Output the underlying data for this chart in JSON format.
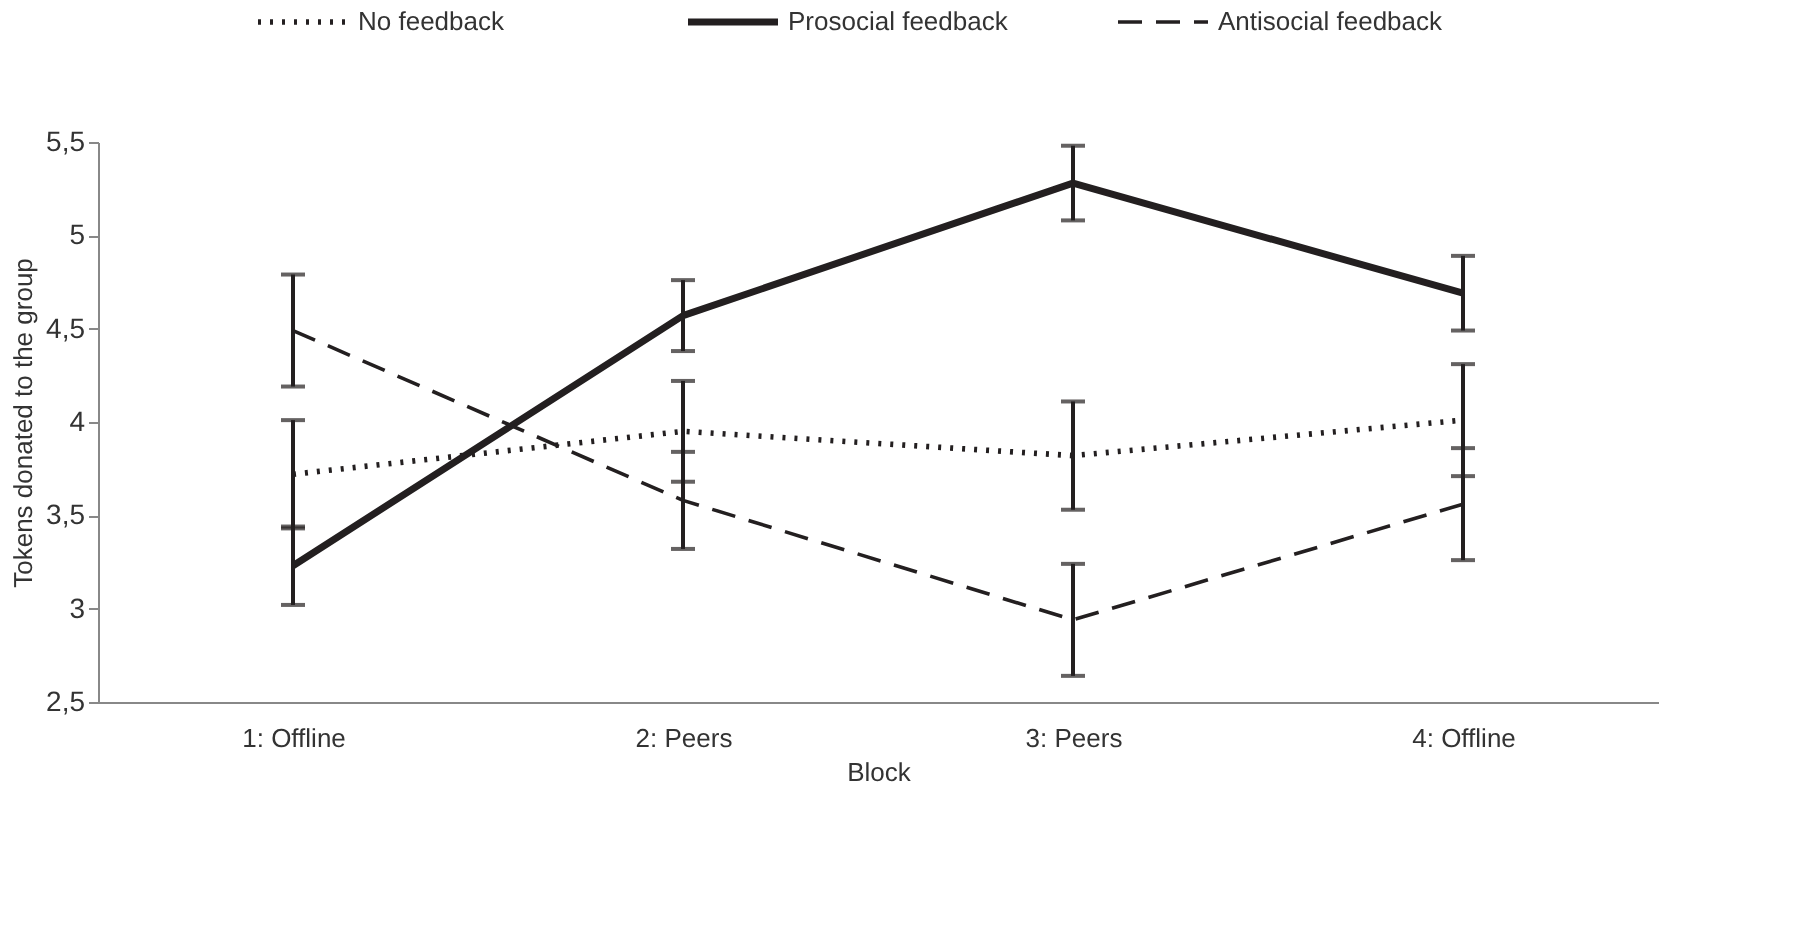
{
  "chart_data": {
    "type": "line",
    "xlabel": "Block",
    "ylabel": "Tokens donated to the group",
    "categories": [
      "1: Offline",
      "2: Peers",
      "3: Peers",
      "4: Offline"
    ],
    "series": [
      {
        "name": "No feedback",
        "color": "#231f20",
        "line_style": "dotted",
        "values": [
          3.72,
          3.95,
          3.82,
          4.01
        ],
        "errors": [
          0.29,
          0.27,
          0.29,
          0.3
        ]
      },
      {
        "name": "Prosocial feedback",
        "color": "#231f20",
        "line_style": "solid",
        "values": [
          3.23,
          4.57,
          5.28,
          4.69
        ],
        "errors": [
          0.21,
          0.19,
          0.2,
          0.2
        ]
      },
      {
        "name": "Antisocial feedback",
        "color": "#231f20",
        "line_style": "dashed",
        "values": [
          4.49,
          3.58,
          2.94,
          3.56
        ],
        "errors": [
          0.3,
          0.26,
          0.3,
          0.3
        ]
      }
    ],
    "ylim": [
      2.5,
      5.5
    ],
    "yticks": [
      {
        "value": 2.5,
        "label": "2,5"
      },
      3,
      {
        "value": 3.5,
        "label": "3,5"
      },
      4,
      {
        "value": 4.5,
        "label": "4,5"
      },
      5,
      {
        "value": 5.5,
        "label": "5,5"
      }
    ],
    "legend": "top",
    "grid": false,
    "marker": "none"
  }
}
